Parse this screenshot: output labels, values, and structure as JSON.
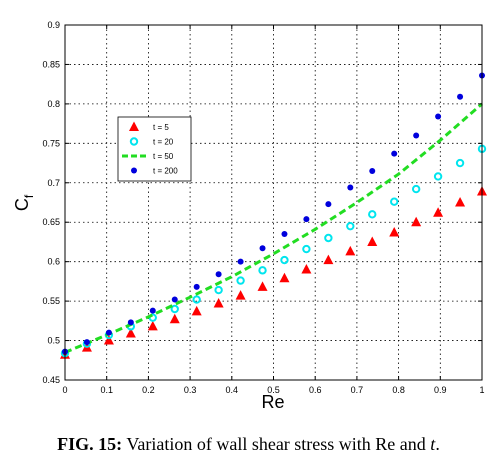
{
  "chart_data": {
    "type": "scatter",
    "xlabel": "Re",
    "ylabel_main": "C",
    "ylabel_sub": "f",
    "xlim": [
      0,
      1
    ],
    "ylim": [
      0.45,
      0.9
    ],
    "xticks": [
      "0",
      "0.1",
      "0.2",
      "0.3",
      "0.4",
      "0.5",
      "0.6",
      "0.7",
      "0.8",
      "0.9",
      "1"
    ],
    "yticks": [
      "0.45",
      "0.5",
      "0.55",
      "0.6",
      "0.65",
      "0.7",
      "0.75",
      "0.8",
      "0.85",
      "0.9"
    ],
    "grid": true,
    "legend_placement": "upper-left",
    "series": [
      {
        "name": "t = 5",
        "marker": "triangle",
        "color": "#ff0000",
        "x": [
          0,
          0.0526,
          0.1053,
          0.1579,
          0.2105,
          0.2632,
          0.3158,
          0.3684,
          0.4211,
          0.4737,
          0.5263,
          0.5789,
          0.6316,
          0.6842,
          0.7368,
          0.7895,
          0.8421,
          0.8947,
          0.9474,
          1.0
        ],
        "y": [
          0.482,
          0.491,
          0.5,
          0.509,
          0.518,
          0.527,
          0.537,
          0.547,
          0.557,
          0.568,
          0.579,
          0.59,
          0.602,
          0.613,
          0.625,
          0.637,
          0.65,
          0.662,
          0.675,
          0.689
        ]
      },
      {
        "name": "t = 20",
        "marker": "circle-open",
        "color": "#00e5ee",
        "x": [
          0,
          0.0526,
          0.1053,
          0.1579,
          0.2105,
          0.2632,
          0.3158,
          0.3684,
          0.4211,
          0.4737,
          0.5263,
          0.5789,
          0.6316,
          0.6842,
          0.7368,
          0.7895,
          0.8421,
          0.8947,
          0.9474,
          1.0
        ],
        "y": [
          0.484,
          0.496,
          0.507,
          0.518,
          0.529,
          0.54,
          0.552,
          0.564,
          0.576,
          0.589,
          0.602,
          0.616,
          0.63,
          0.645,
          0.66,
          0.676,
          0.692,
          0.708,
          0.725,
          0.743
        ]
      },
      {
        "name": "t = 50",
        "marker": "dashed-line",
        "color": "#22dd22",
        "x": [
          0,
          0.1,
          0.2,
          0.3,
          0.4,
          0.5,
          0.6,
          0.7,
          0.8,
          0.9,
          1.0
        ],
        "y": [
          0.485,
          0.507,
          0.53,
          0.555,
          0.581,
          0.61,
          0.641,
          0.675,
          0.711,
          0.754,
          0.8
        ]
      },
      {
        "name": "t = 200",
        "marker": "dot",
        "color": "#0000dd",
        "x": [
          0,
          0.0526,
          0.1053,
          0.1579,
          0.2105,
          0.2632,
          0.3158,
          0.3684,
          0.4211,
          0.4737,
          0.5263,
          0.5789,
          0.6316,
          0.6842,
          0.7368,
          0.7895,
          0.8421,
          0.8947,
          0.9474,
          1.0
        ],
        "y": [
          0.486,
          0.498,
          0.51,
          0.523,
          0.538,
          0.552,
          0.568,
          0.584,
          0.6,
          0.617,
          0.635,
          0.654,
          0.673,
          0.694,
          0.715,
          0.737,
          0.76,
          0.784,
          0.809,
          0.836
        ]
      }
    ]
  },
  "caption": {
    "label": "FIG. 15:",
    "text": "Variation of wall shear stress with Re and ",
    "italic_t": "t",
    "end": "."
  }
}
